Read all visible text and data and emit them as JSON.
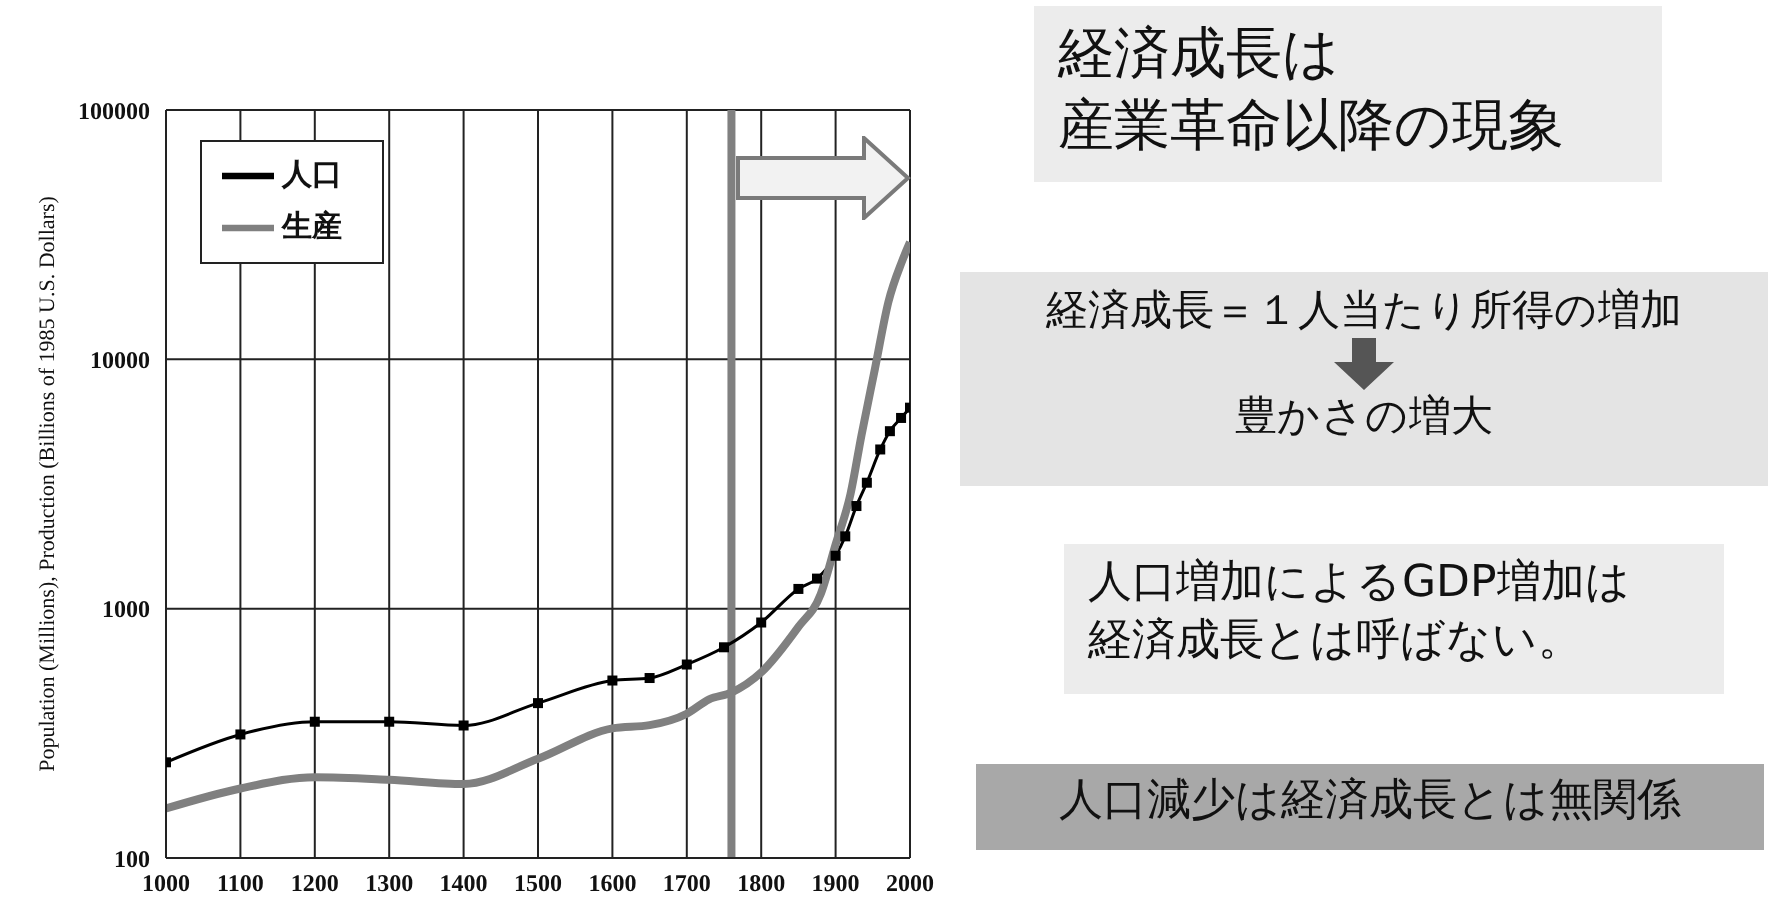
{
  "chart_data": {
    "type": "line",
    "ylabel": "Population (Millions), Production (Billions of 1985 U.S. Dollars)",
    "log": "y",
    "xlim": [
      1000,
      2000
    ],
    "xticks": [
      1000,
      1100,
      1200,
      1300,
      1400,
      1500,
      1600,
      1700,
      1800,
      1900,
      2000
    ],
    "ylim": [
      100,
      100000
    ],
    "yticks": [
      100,
      1000,
      10000,
      100000
    ],
    "grid": true,
    "legend": "top left",
    "line_style": "solid",
    "series": [
      {
        "name": "人口",
        "color": "#000000",
        "marker": "square",
        "x": [
          1000,
          1100,
          1200,
          1300,
          1400,
          1500,
          1600,
          1650,
          1700,
          1750,
          1800,
          1850,
          1875,
          1900,
          1913,
          1928,
          1942,
          1960,
          1973,
          1988,
          2000
        ],
        "values": [
          242,
          313,
          352,
          352,
          340,
          418,
          515,
          527,
          597,
          700,
          880,
          1200,
          1320,
          1630,
          1950,
          2580,
          3200,
          4350,
          5150,
          5820,
          6400
        ]
      },
      {
        "name": "生産",
        "color": "#808080",
        "marker": "none",
        "x": [
          1000,
          1100,
          1200,
          1300,
          1400,
          1500,
          1600,
          1650,
          1700,
          1730,
          1760,
          1800,
          1850,
          1880,
          1900,
          1920,
          1935,
          1953,
          1971,
          1989,
          2000
        ],
        "values": [
          158,
          190,
          211,
          206,
          198,
          250,
          331,
          341,
          379,
          433,
          461,
          555,
          845,
          1144,
          1810,
          2880,
          5000,
          9200,
          17000,
          24600,
          29500
        ]
      }
    ],
    "ref_lines": [
      {
        "axis": "x",
        "value": 1760,
        "color": "#808080"
      }
    ],
    "annotations": [
      "経済成長は",
      "産業革命以降の現象",
      "経済成長＝１人当たり所得の増加",
      "豊かさの増大",
      "人口増加によるGDP増加は",
      "経済成長とは呼ばない。",
      "人口減少は経済成長とは無関係"
    ]
  }
}
